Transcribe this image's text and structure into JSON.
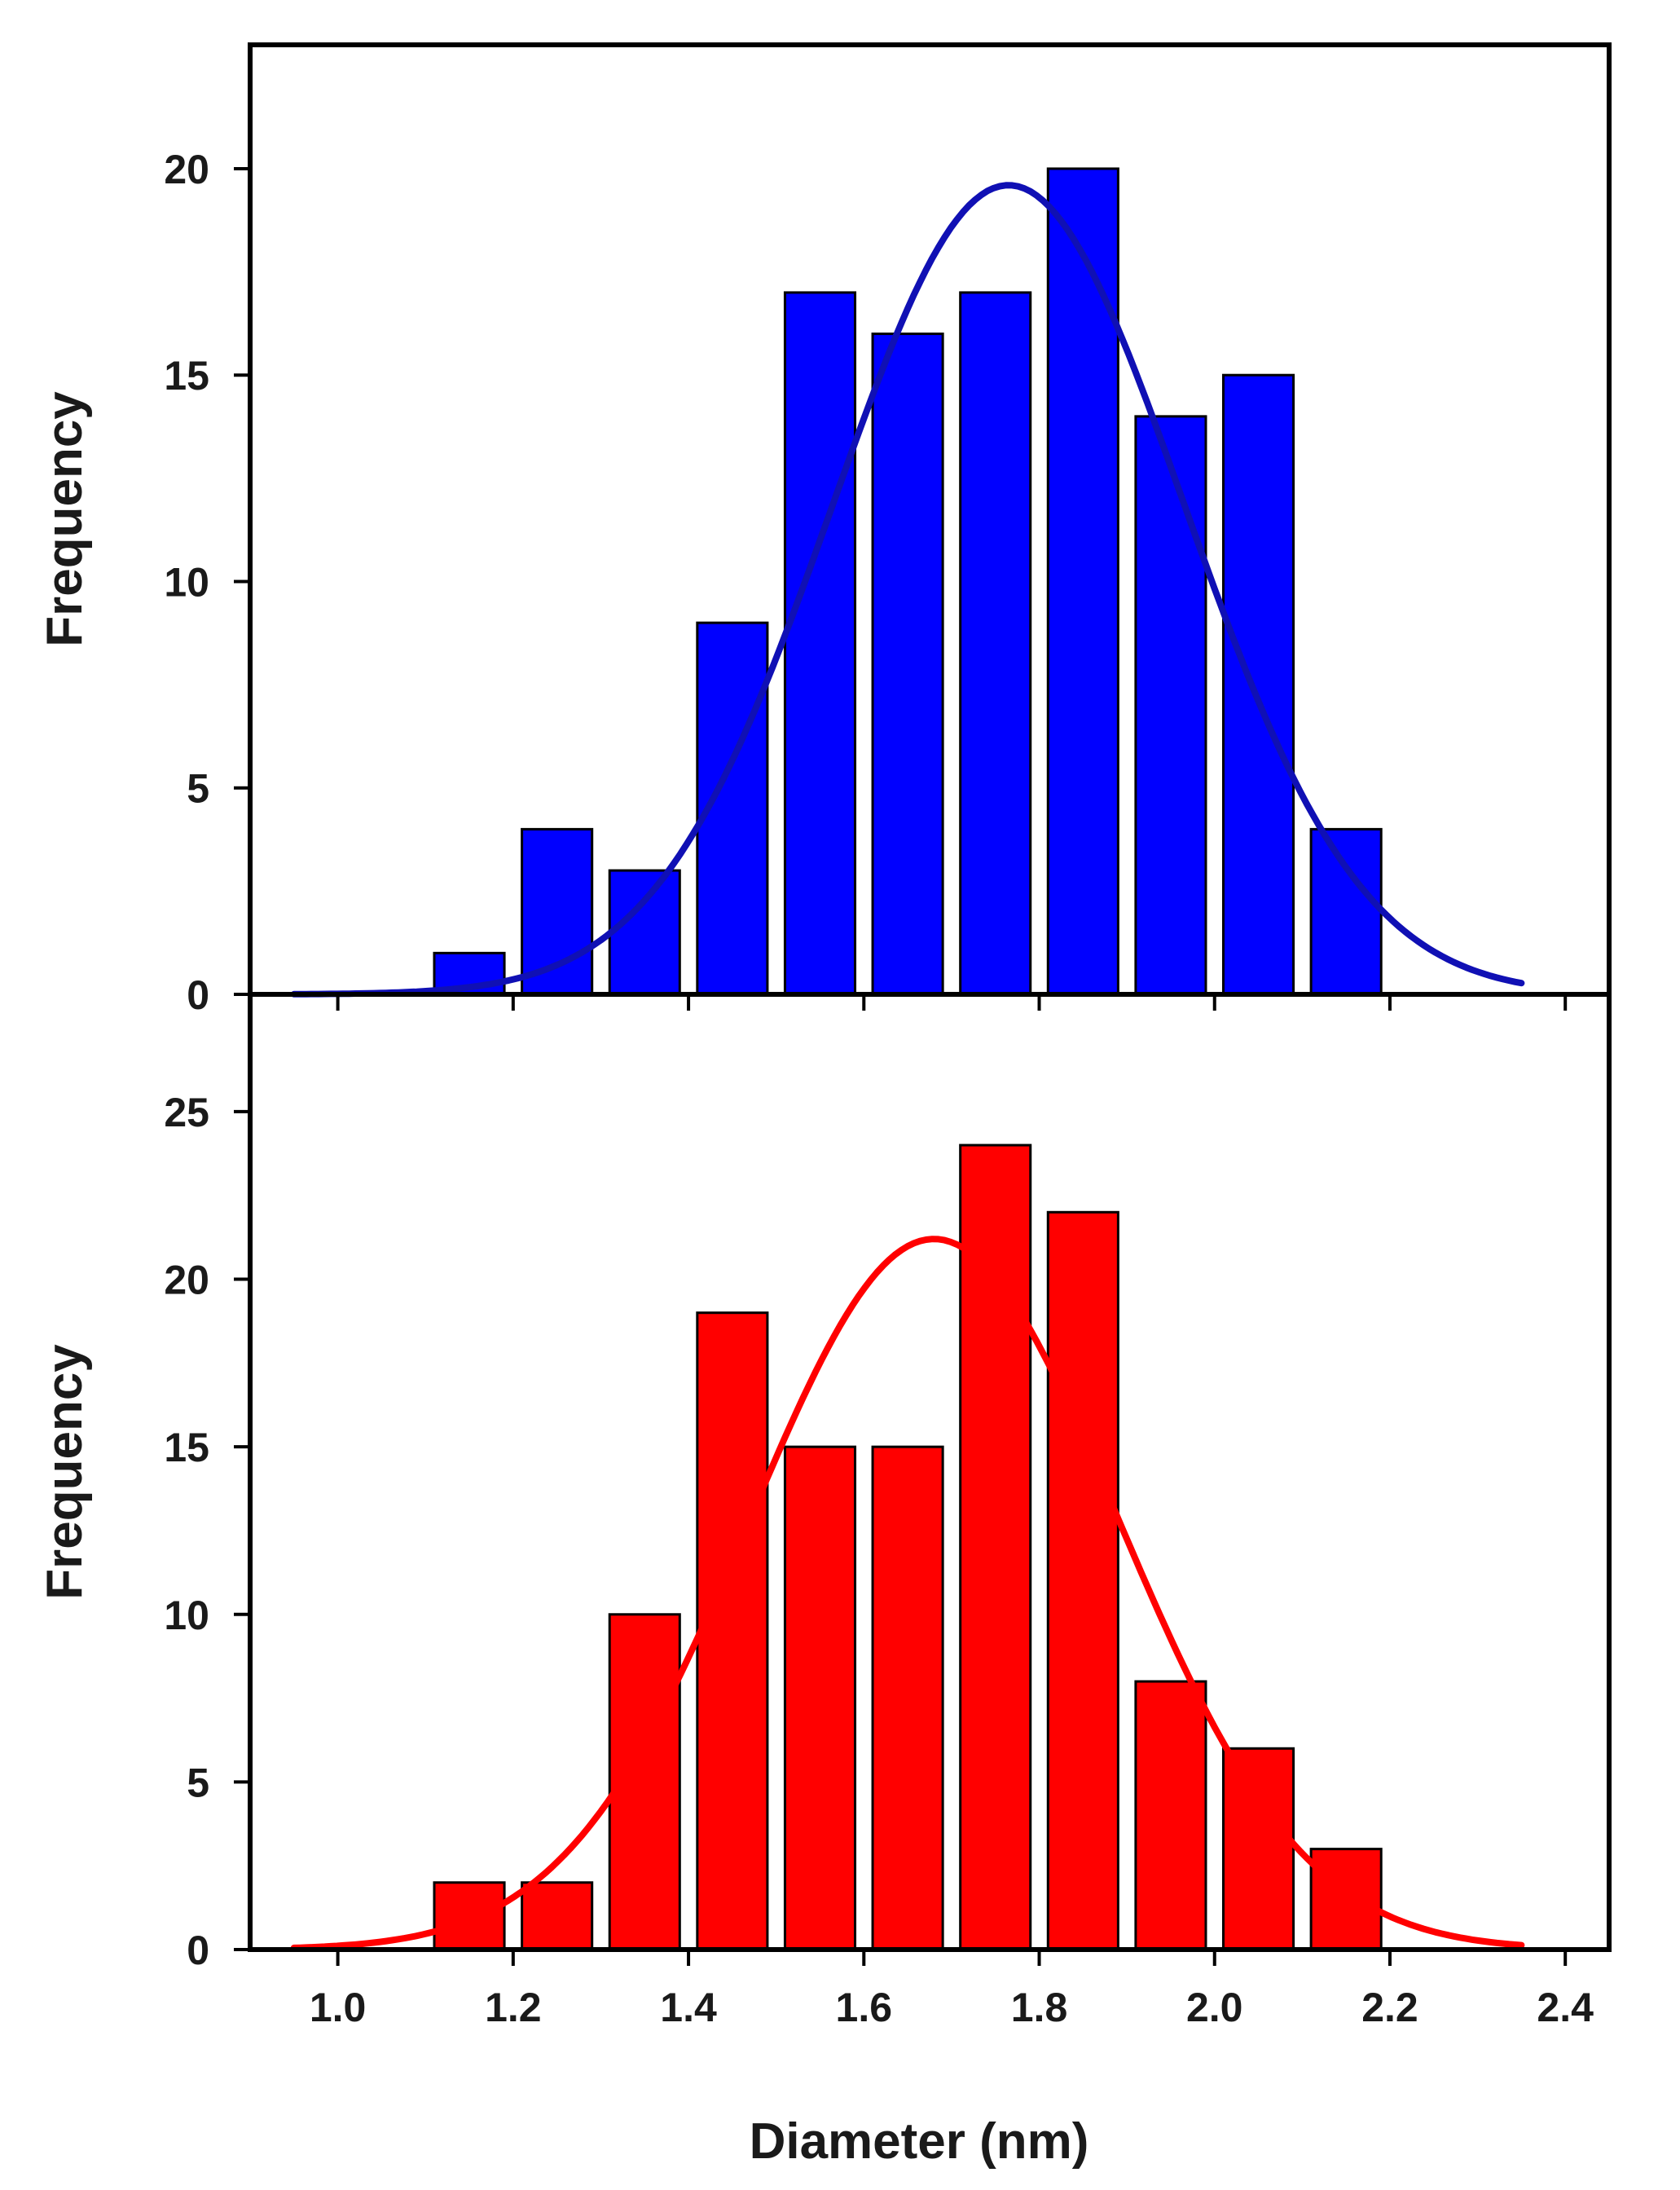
{
  "chart_data": [
    {
      "type": "bar",
      "panel": "top",
      "bar_color": "#0000ff",
      "curve_color": "#1010b4",
      "x": [
        1.15,
        1.25,
        1.35,
        1.45,
        1.55,
        1.65,
        1.75,
        1.85,
        1.95,
        2.05,
        2.15
      ],
      "values": [
        1,
        4,
        3,
        9,
        17,
        16,
        17,
        20,
        14,
        15,
        4
      ],
      "bin_width": 0.08,
      "fit_curve": {
        "type": "gaussian",
        "amplitude": 19.6,
        "mean": 1.765,
        "sigma": 0.2,
        "x_range": [
          0.95,
          2.35
        ]
      },
      "ylabel": "Frequency",
      "xlim": [
        0.9,
        2.45
      ],
      "ylim": [
        0,
        23
      ],
      "y_ticks": [
        0,
        5,
        10,
        15,
        20
      ],
      "y_tick_labels": [
        "0",
        "5",
        "10",
        "15",
        "20"
      ]
    },
    {
      "type": "bar",
      "panel": "bottom",
      "bar_color": "#ff0000",
      "curve_color": "#ff0000",
      "x": [
        1.15,
        1.25,
        1.35,
        1.45,
        1.55,
        1.65,
        1.75,
        1.85,
        1.95,
        2.05,
        2.15
      ],
      "values": [
        2,
        2,
        10,
        19,
        15,
        15,
        24,
        22,
        8,
        6,
        3
      ],
      "bin_width": 0.08,
      "fit_curve": {
        "type": "gaussian",
        "amplitude": 21.2,
        "mean": 1.68,
        "sigma": 0.21,
        "x_range": [
          0.95,
          2.35
        ]
      },
      "ylabel": "Frequency",
      "xlabel": "Diameter (nm)",
      "xlim": [
        0.9,
        2.45
      ],
      "ylim": [
        0,
        28.5
      ],
      "y_ticks": [
        0,
        5,
        10,
        15,
        20,
        25
      ],
      "y_tick_labels": [
        "0",
        "5",
        "10",
        "15",
        "20",
        "25"
      ],
      "x_ticks": [
        1.0,
        1.2,
        1.4,
        1.6,
        1.8,
        2.0,
        2.2,
        2.4
      ],
      "x_tick_labels": [
        "1.0",
        "1.2",
        "1.4",
        "1.6",
        "1.8",
        "2.0",
        "2.2",
        "2.4"
      ]
    }
  ]
}
